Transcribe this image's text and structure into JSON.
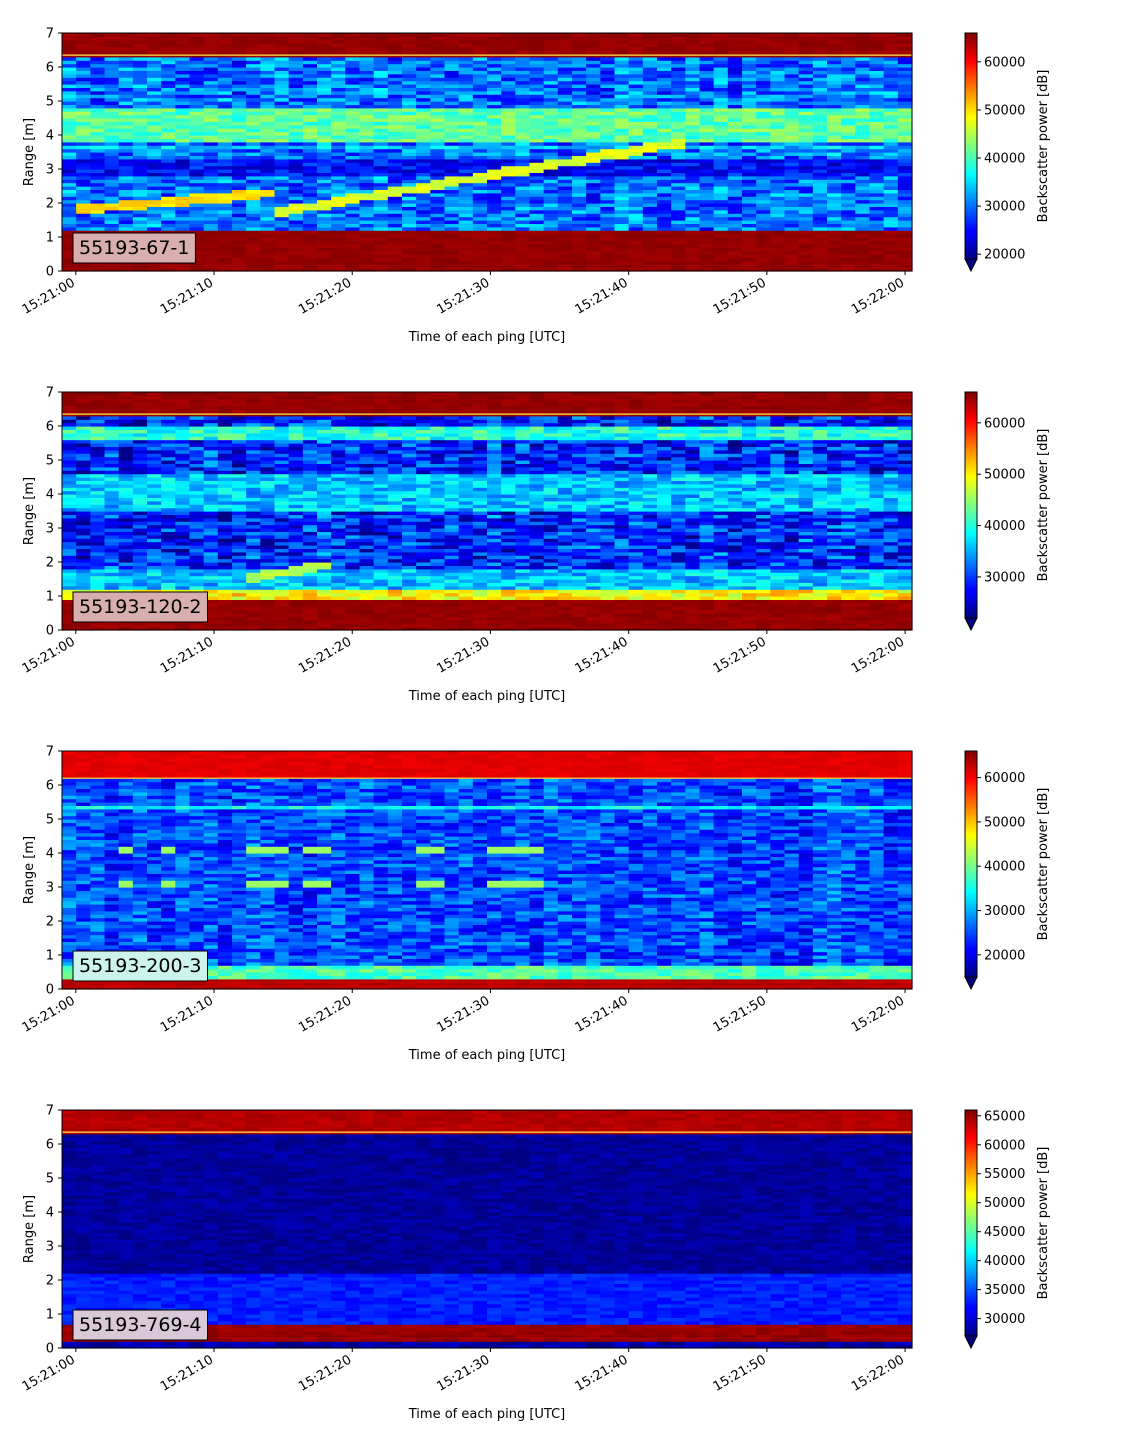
{
  "chart_data": [
    {
      "type": "heatmap",
      "label": "55193-67-1",
      "label_bg": "#d8aeae",
      "xlabel": "Time of each ping [UTC]",
      "ylabel": "Range [m]",
      "x_ticks": [
        "15:21:00",
        "15:21:10",
        "15:21:20",
        "15:21:30",
        "15:21:40",
        "15:21:50",
        "15:22:00"
      ],
      "y_ticks": [
        "0",
        "1",
        "2",
        "3",
        "4",
        "5",
        "6",
        "7"
      ],
      "ylim": [
        0,
        7
      ],
      "colorbar_label": "Backscatter power [dB]",
      "colorbar_ticks": [
        "20000",
        "30000",
        "40000",
        "50000",
        "60000"
      ],
      "colorbar_range": [
        19000,
        66000
      ],
      "colormap": "jet",
      "features": [
        {
          "kind": "band",
          "range_m": [
            0,
            1.2
          ],
          "level": 65000
        },
        {
          "kind": "band",
          "range_m": [
            6.35,
            7
          ],
          "level": 65000
        },
        {
          "kind": "band",
          "range_m": [
            3.8,
            4.8
          ],
          "level": 41000
        },
        {
          "kind": "band",
          "range_m": [
            3.6,
            3.75
          ],
          "level": 34000
        },
        {
          "kind": "band",
          "range_m": [
            2.8,
            3.3
          ],
          "level": 25000
        },
        {
          "kind": "streak",
          "from": {
            "t": "15:21:00",
            "range_m": 1.8
          },
          "to": {
            "t": "15:21:14",
            "range_m": 2.3
          },
          "level": 50000
        },
        {
          "kind": "streak",
          "from": {
            "t": "15:21:14",
            "range_m": 1.7
          },
          "to": {
            "t": "15:21:44",
            "range_m": 3.8
          },
          "level": 47000
        }
      ]
    },
    {
      "type": "heatmap",
      "label": "55193-120-2",
      "label_bg": "#d8aeae",
      "xlabel": "Time of each ping [UTC]",
      "ylabel": "Range [m]",
      "x_ticks": [
        "15:21:00",
        "15:21:10",
        "15:21:20",
        "15:21:30",
        "15:21:40",
        "15:21:50",
        "15:22:00"
      ],
      "y_ticks": [
        "0",
        "1",
        "2",
        "3",
        "4",
        "5",
        "6",
        "7"
      ],
      "ylim": [
        0,
        7
      ],
      "colorbar_label": "Backscatter power [dB]",
      "colorbar_ticks": [
        "30000",
        "40000",
        "50000",
        "60000"
      ],
      "colorbar_range": [
        22000,
        66000
      ],
      "colormap": "jet",
      "features": [
        {
          "kind": "band",
          "range_m": [
            0,
            0.9
          ],
          "level": 65000
        },
        {
          "kind": "band",
          "range_m": [
            0.9,
            1.2
          ],
          "level": 50000
        },
        {
          "kind": "band",
          "range_m": [
            6.35,
            7
          ],
          "level": 65000
        },
        {
          "kind": "band",
          "range_m": [
            5.6,
            6.0
          ],
          "level": 40000
        },
        {
          "kind": "band",
          "range_m": [
            3.5,
            4.6
          ],
          "level": 36000
        },
        {
          "kind": "band",
          "range_m": [
            1.2,
            1.8
          ],
          "level": 36000
        },
        {
          "kind": "streak",
          "from": {
            "t": "15:21:12",
            "range_m": 1.5
          },
          "to": {
            "t": "15:21:18",
            "range_m": 1.9
          },
          "level": 46000
        }
      ]
    },
    {
      "type": "heatmap",
      "label": "55193-200-3",
      "label_bg": "#cdf4ec",
      "xlabel": "Time of each ping [UTC]",
      "ylabel": "Range [m]",
      "x_ticks": [
        "15:21:00",
        "15:21:10",
        "15:21:20",
        "15:21:30",
        "15:21:40",
        "15:21:50",
        "15:22:00"
      ],
      "y_ticks": [
        "0",
        "1",
        "2",
        "3",
        "4",
        "5",
        "6",
        "7"
      ],
      "ylim": [
        0,
        7
      ],
      "colorbar_label": "Backscatter power [dB]",
      "colorbar_ticks": [
        "20000",
        "30000",
        "40000",
        "50000",
        "60000"
      ],
      "colorbar_range": [
        15000,
        66000
      ],
      "colormap": "jet",
      "features": [
        {
          "kind": "band",
          "range_m": [
            0,
            0.3
          ],
          "level": 63000
        },
        {
          "kind": "band",
          "range_m": [
            0.3,
            0.7
          ],
          "level": 38000
        },
        {
          "kind": "band",
          "range_m": [
            6.2,
            7
          ],
          "level": 61000
        },
        {
          "kind": "band",
          "range_m": [
            5.35,
            5.45
          ],
          "level": 34000
        },
        {
          "kind": "dots",
          "range_m": [
            3.1,
            4.1
          ],
          "t_range": [
            "15:21:03",
            "15:21:34"
          ],
          "level": 42000
        }
      ]
    },
    {
      "type": "heatmap",
      "label": "55193-769-4",
      "label_bg": "#d9c8d8",
      "xlabel": "Time of each ping [UTC]",
      "ylabel": "Range [m]",
      "x_ticks": [
        "15:21:00",
        "15:21:10",
        "15:21:20",
        "15:21:30",
        "15:21:40",
        "15:21:50",
        "15:22:00"
      ],
      "y_ticks": [
        "0",
        "1",
        "2",
        "3",
        "4",
        "5",
        "6",
        "7"
      ],
      "ylim": [
        0,
        7
      ],
      "colorbar_label": "Backscatter power [dB]",
      "colorbar_ticks": [
        "30000",
        "35000",
        "40000",
        "45000",
        "50000",
        "55000",
        "60000",
        "65000"
      ],
      "colorbar_range": [
        27000,
        66000
      ],
      "colormap": "jet",
      "features": [
        {
          "kind": "band",
          "range_m": [
            0.2,
            0.7
          ],
          "level": 65000
        },
        {
          "kind": "band",
          "range_m": [
            6.35,
            7
          ],
          "level": 64000
        },
        {
          "kind": "band",
          "range_m": [
            0.7,
            2.2
          ],
          "level": 33000
        },
        {
          "kind": "band",
          "range_m": [
            2.2,
            6.35
          ],
          "level": 28000
        }
      ]
    }
  ]
}
